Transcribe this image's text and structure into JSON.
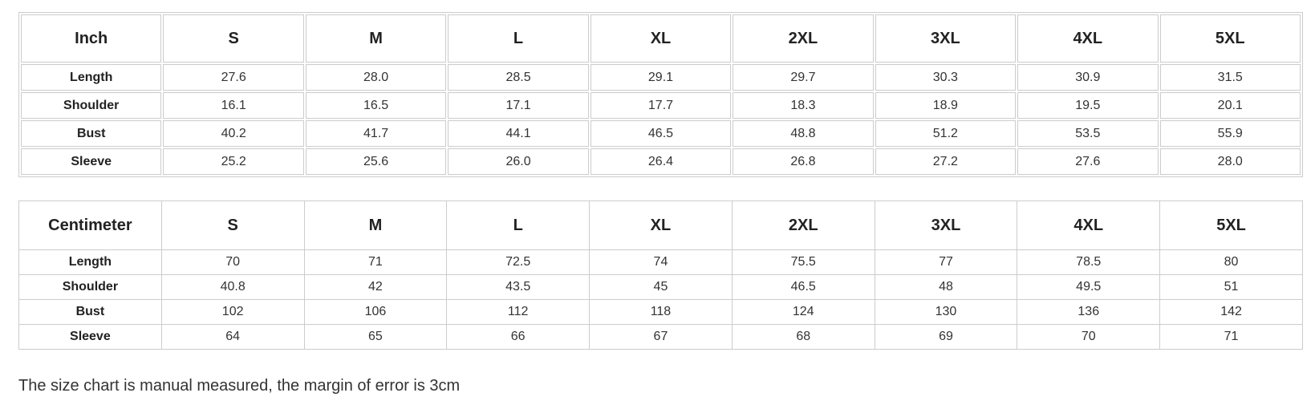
{
  "sizes": [
    "S",
    "M",
    "L",
    "XL",
    "2XL",
    "3XL",
    "4XL",
    "5XL"
  ],
  "inch_table": {
    "unit": "Inch",
    "rows": [
      {
        "label": "Length",
        "values": [
          "27.6",
          "28.0",
          "28.5",
          "29.1",
          "29.7",
          "30.3",
          "30.9",
          "31.5"
        ]
      },
      {
        "label": "Shoulder",
        "values": [
          "16.1",
          "16.5",
          "17.1",
          "17.7",
          "18.3",
          "18.9",
          "19.5",
          "20.1"
        ]
      },
      {
        "label": "Bust",
        "values": [
          "40.2",
          "41.7",
          "44.1",
          "46.5",
          "48.8",
          "51.2",
          "53.5",
          "55.9"
        ]
      },
      {
        "label": "Sleeve",
        "values": [
          "25.2",
          "25.6",
          "26.0",
          "26.4",
          "26.8",
          "27.2",
          "27.6",
          "28.0"
        ]
      }
    ]
  },
  "cm_table": {
    "unit": "Centimeter",
    "rows": [
      {
        "label": "Length",
        "values": [
          "70",
          "71",
          "72.5",
          "74",
          "75.5",
          "77",
          "78.5",
          "80"
        ]
      },
      {
        "label": "Shoulder",
        "values": [
          "40.8",
          "42",
          "43.5",
          "45",
          "46.5",
          "48",
          "49.5",
          "51"
        ]
      },
      {
        "label": "Bust",
        "values": [
          "102",
          "106",
          "112",
          "118",
          "124",
          "130",
          "136",
          "142"
        ]
      },
      {
        "label": "Sleeve",
        "values": [
          "64",
          "65",
          "66",
          "67",
          "68",
          "69",
          "70",
          "71"
        ]
      }
    ]
  },
  "note": "The size chart is manual measured, the margin of error is 3cm"
}
